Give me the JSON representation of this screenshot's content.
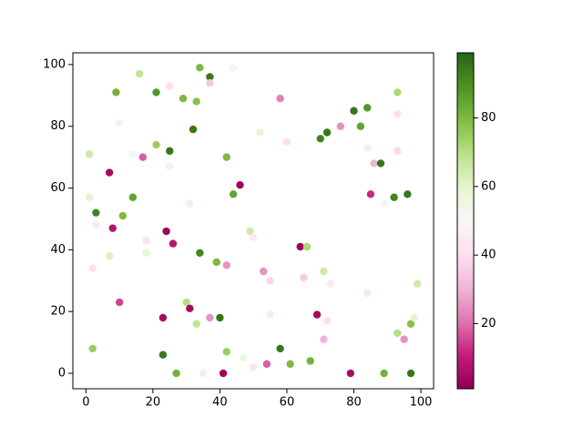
{
  "chart_data": {
    "type": "scatter",
    "x": [
      1,
      1,
      3,
      2,
      2,
      3,
      7,
      8,
      7,
      9,
      10,
      11,
      10,
      14,
      14,
      16,
      17,
      18,
      18,
      21,
      21,
      25,
      25,
      25,
      24,
      26,
      23,
      23,
      27,
      29,
      30,
      31,
      31,
      32,
      33,
      34,
      37,
      37,
      34,
      33,
      35,
      37,
      39,
      40,
      41,
      42,
      42,
      42,
      44,
      44,
      46,
      47,
      49,
      50,
      50,
      52,
      53,
      55,
      55,
      54,
      58,
      58,
      60,
      61,
      64,
      66,
      65,
      67,
      70,
      72,
      71,
      73,
      69,
      72,
      71,
      76,
      79,
      80,
      82,
      84,
      84,
      84,
      86,
      88,
      85,
      89,
      89,
      93,
      93,
      93,
      92,
      96,
      93,
      95,
      97,
      98,
      97,
      99
    ],
    "y": [
      71,
      57,
      52,
      8,
      34,
      48,
      65,
      47,
      38,
      91,
      81,
      51,
      23,
      57,
      71,
      97,
      70,
      43,
      39,
      91,
      74,
      93,
      72,
      67,
      46,
      42,
      18,
      6,
      0,
      89,
      23,
      21,
      55,
      79,
      88,
      99,
      96,
      94,
      39,
      16,
      0,
      18,
      36,
      18,
      0,
      70,
      35,
      7,
      99,
      58,
      61,
      5,
      46,
      44,
      2,
      78,
      33,
      30,
      19,
      3,
      89,
      8,
      75,
      3,
      41,
      41,
      31,
      4,
      76,
      78,
      33,
      29,
      19,
      17,
      11,
      80,
      0,
      85,
      80,
      86,
      73,
      26,
      68,
      68,
      58,
      55,
      0,
      91,
      84,
      72,
      57,
      58,
      13,
      11,
      16,
      18,
      0,
      29
    ],
    "c": [
      65,
      60,
      92,
      75,
      40,
      45,
      5,
      8,
      62,
      82,
      48,
      80,
      15,
      85,
      48,
      68,
      18,
      42,
      58,
      88,
      75,
      40,
      95,
      45,
      3,
      8,
      5,
      95,
      82,
      80,
      70,
      5,
      45,
      95,
      78,
      80,
      95,
      35,
      92,
      68,
      45,
      25,
      80,
      95,
      3,
      80,
      25,
      75,
      48,
      85,
      3,
      55,
      65,
      45,
      42,
      58,
      25,
      38,
      45,
      18,
      22,
      95,
      40,
      80,
      3,
      72,
      35,
      82,
      92,
      95,
      65,
      45,
      5,
      40,
      30,
      25,
      5,
      95,
      85,
      88,
      45,
      42,
      30,
      95,
      12,
      52,
      82,
      72,
      40,
      38,
      92,
      95,
      70,
      25,
      78,
      60,
      95,
      65
    ],
    "colormap": [
      "#8e0152",
      "#c51b7d",
      "#de77ae",
      "#f1b6da",
      "#fde0ef",
      "#f7f7f7",
      "#e6f5d0",
      "#b8e186",
      "#7fbc41",
      "#4d9221",
      "#276419"
    ],
    "clim": [
      1,
      99
    ],
    "cticks": [
      20,
      40,
      60,
      80
    ],
    "xlim": [
      -3.9,
      103.8
    ],
    "ylim": [
      -5,
      103.8
    ],
    "xticks": [
      0,
      20,
      40,
      60,
      80,
      100
    ],
    "yticks": [
      0,
      20,
      40,
      60,
      80,
      100
    ]
  }
}
